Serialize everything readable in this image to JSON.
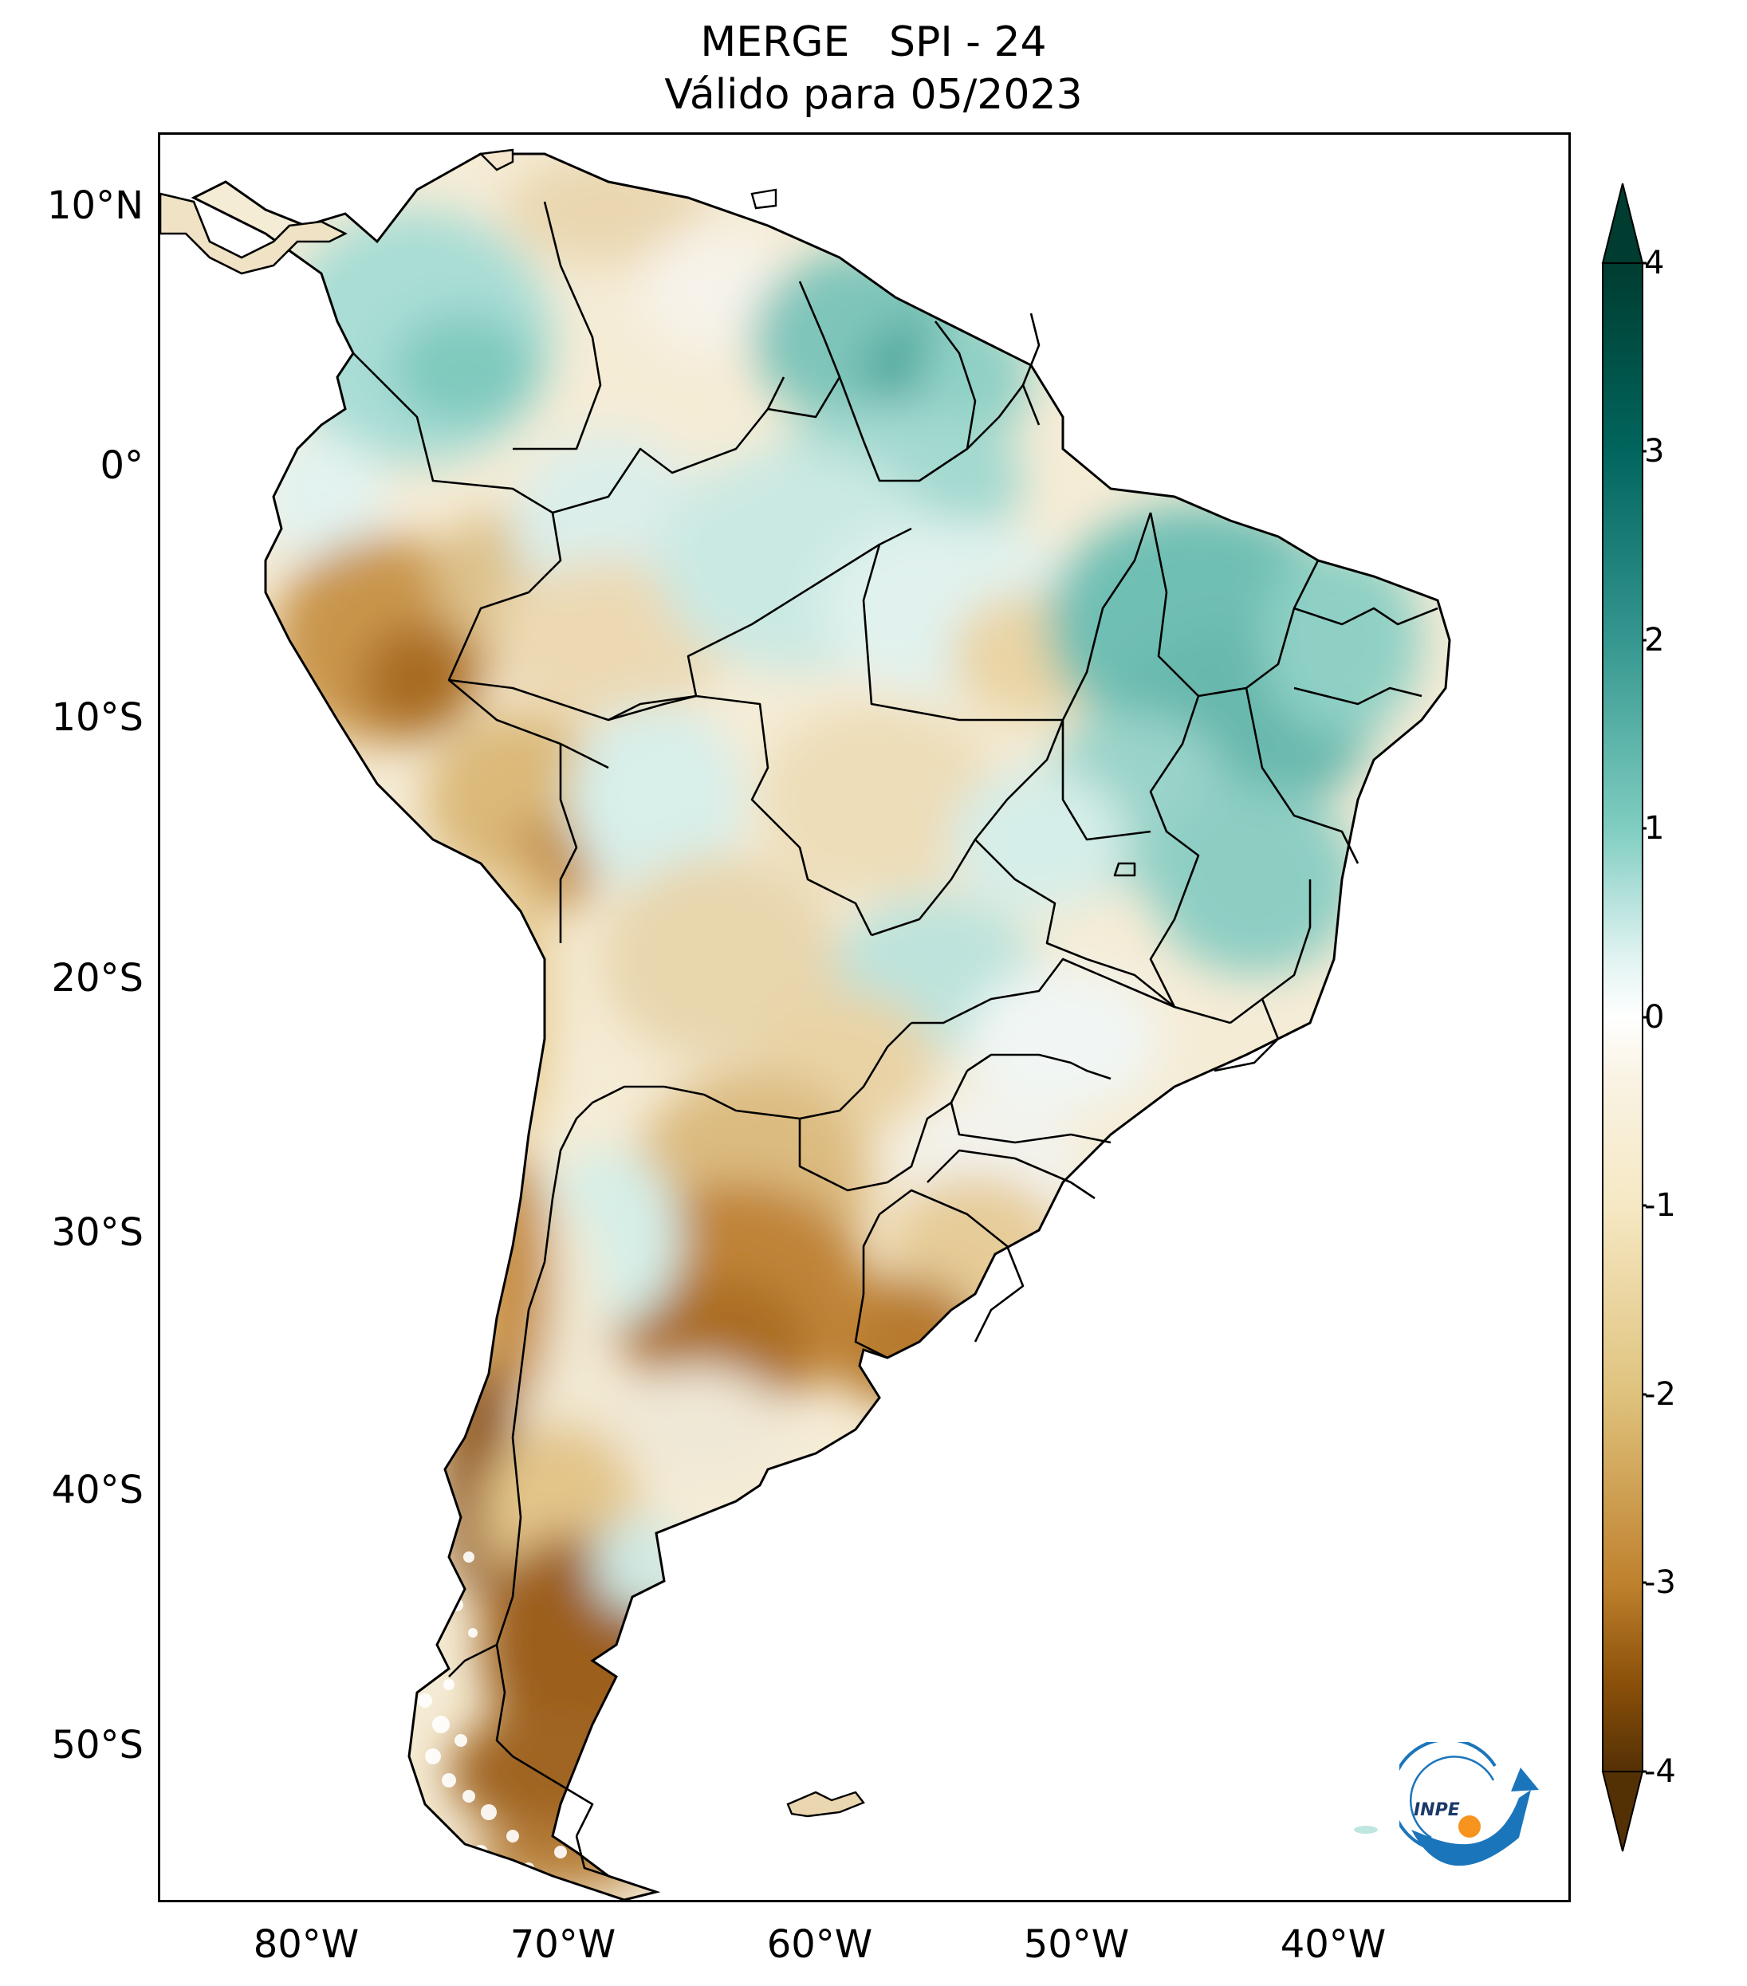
{
  "header": {
    "title_line1": "MERGE   SPI - 24",
    "title_line2": "Válido para 05/2023"
  },
  "axes": {
    "lat_labels": [
      "10°N",
      "0°",
      "10°S",
      "20°S",
      "30°S",
      "40°S",
      "50°S"
    ],
    "lon_labels": [
      "80°W",
      "70°W",
      "60°W",
      "50°W",
      "40°W"
    ]
  },
  "colorbar": {
    "ticks": [
      "4",
      "3",
      "2",
      "1",
      "0",
      "-1",
      "-2",
      "-3",
      "-4"
    ],
    "min": -4,
    "max": 4,
    "colors": {
      "v-4": "#543005",
      "v-3": "#8c510a",
      "v-2": "#bf812d",
      "v-1": "#f6e8c3",
      "v0": "#ffffff",
      "v1": "#c7eae5",
      "v2": "#5ab4ac",
      "v3": "#01665e",
      "v4": "#003c30"
    }
  },
  "logo": {
    "text": "INPE",
    "colors": {
      "arc": "#1b75bb",
      "dot": "#f7941d"
    }
  }
}
